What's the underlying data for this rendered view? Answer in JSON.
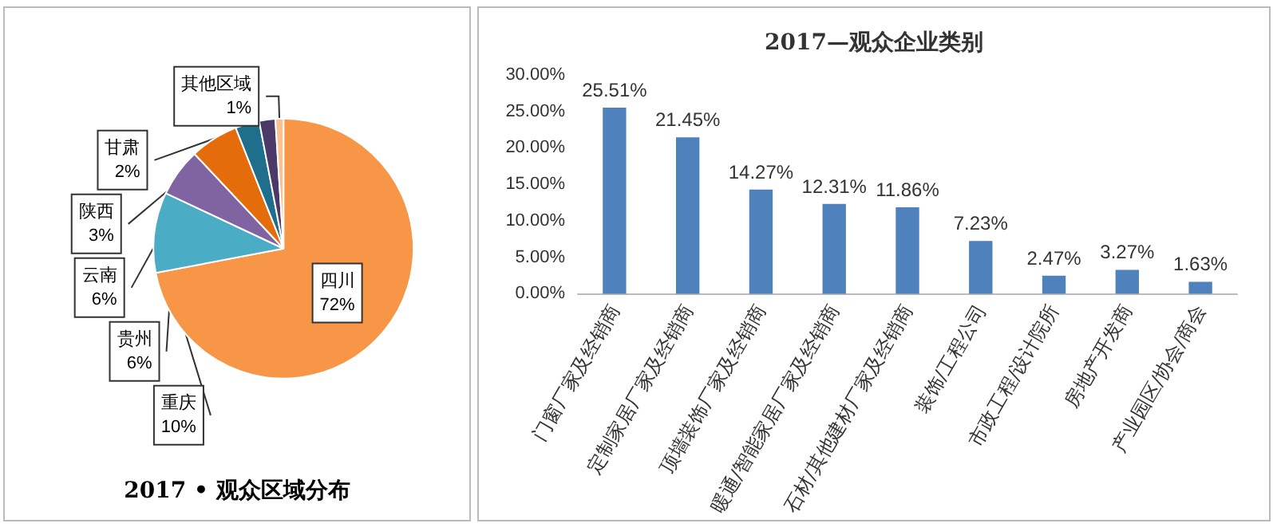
{
  "chart_data": [
    {
      "type": "pie",
      "title": "2017 • 观众区域分布",
      "categories": [
        "四川",
        "重庆",
        "贵州",
        "云南",
        "陕西",
        "甘肃",
        "其他区域"
      ],
      "values": [
        72,
        10,
        6,
        6,
        3,
        2,
        1
      ],
      "value_labels": [
        "72%",
        "10%",
        "6%",
        "6%",
        "3%",
        "2%",
        "1%"
      ],
      "colors": [
        "#f79646",
        "#4bacc6",
        "#8064a2",
        "#e46c0a",
        "#1f6e8c",
        "#4b3968",
        "#fac090"
      ],
      "legend": false
    },
    {
      "type": "bar",
      "title": "2017—观众企业类别",
      "categories": [
        "门窗厂家及经销商",
        "定制家居厂家及经销商",
        "顶墙装饰厂家及经销商",
        "暖通/智能家居厂家及经销商",
        "石材/其他建材厂家及经销商",
        "装饰/工程公司",
        "市政工程/设计院所",
        "房地产开发商",
        "产业园区/协会/商会"
      ],
      "values": [
        25.51,
        21.45,
        14.27,
        12.31,
        11.86,
        7.23,
        2.47,
        3.27,
        1.63
      ],
      "value_labels": [
        "25.51%",
        "21.45%",
        "14.27%",
        "12.31%",
        "11.86%",
        "7.23%",
        "2.47%",
        "3.27%",
        "1.63%"
      ],
      "color": "#4f81bd",
      "ylim": [
        0,
        30
      ],
      "yticks": [
        {
          "value": 0,
          "label": "0.00%"
        },
        {
          "value": 5,
          "label": "5.00%"
        },
        {
          "value": 10,
          "label": "10.00%"
        },
        {
          "value": 15,
          "label": "15.00%"
        },
        {
          "value": 20,
          "label": "20.00%"
        },
        {
          "value": 25,
          "label": "25.00%"
        },
        {
          "value": 30,
          "label": "30.00%"
        }
      ],
      "grid": false,
      "legend": false
    }
  ]
}
